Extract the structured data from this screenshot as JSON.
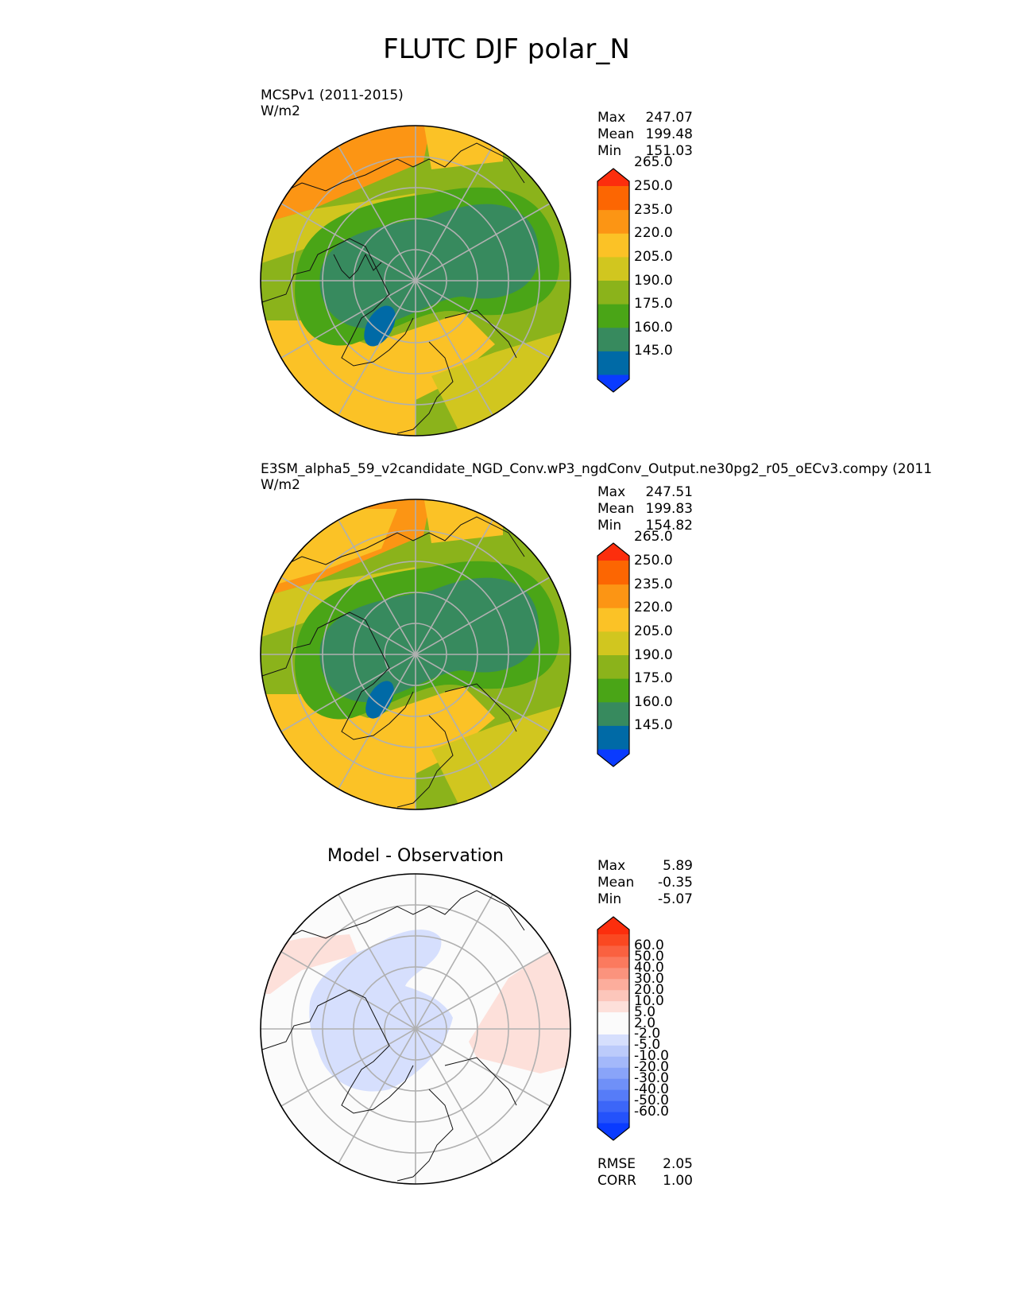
{
  "title": "FLUTC DJF polar_N",
  "panels": [
    {
      "id": "test",
      "subtitle": "MCSPv1 (2011-2015)",
      "units": "W/m2",
      "stats": [
        {
          "label": "Max",
          "value": "247.07"
        },
        {
          "label": "Mean",
          "value": "199.48"
        },
        {
          "label": "Min",
          "value": "151.03"
        }
      ],
      "colorbar": {
        "colors": [
          "#0a3bff",
          "#006aa6",
          "#378a5e",
          "#4aa517",
          "#8bb31b",
          "#d1c61f",
          "#fbc226",
          "#fc9514",
          "#fc6602",
          "#fc2e0d"
        ],
        "labels": [
          "145.0",
          "160.0",
          "175.0",
          "190.0",
          "205.0",
          "220.0",
          "235.0",
          "250.0",
          "265.0"
        ]
      }
    },
    {
      "id": "reference",
      "subtitle": "E3SM_alpha5_59_v2candidate_NGD_Conv.wP3_ngdConv_Output.ne30pg2_r05_oECv3.compy (2011",
      "units": "W/m2",
      "stats": [
        {
          "label": "Max",
          "value": "247.51"
        },
        {
          "label": "Mean",
          "value": "199.83"
        },
        {
          "label": "Min",
          "value": "154.82"
        }
      ],
      "colorbar": {
        "colors": [
          "#0a3bff",
          "#006aa6",
          "#378a5e",
          "#4aa517",
          "#8bb31b",
          "#d1c61f",
          "#fbc226",
          "#fc9514",
          "#fc6602",
          "#fc2e0d"
        ],
        "labels": [
          "145.0",
          "160.0",
          "175.0",
          "190.0",
          "205.0",
          "220.0",
          "235.0",
          "250.0",
          "265.0"
        ]
      }
    },
    {
      "id": "difference",
      "plot_title": "Model - Observation",
      "stats": [
        {
          "label": "Max",
          "value": "5.89"
        },
        {
          "label": "Mean",
          "value": "-0.35"
        },
        {
          "label": "Min",
          "value": "-5.07"
        }
      ],
      "metrics": [
        {
          "label": "RMSE",
          "value": "2.05"
        },
        {
          "label": "CORR",
          "value": "1.00"
        }
      ],
      "colorbar": {
        "colors": [
          "#0a3bff",
          "#2452fb",
          "#3c66f8",
          "#567cf8",
          "#6f90f8",
          "#89a4f9",
          "#a3b8fa",
          "#bccbfb",
          "#d6dffd",
          "#fbfbfb",
          "#fbfbfb",
          "#fde0da",
          "#fcc6bb",
          "#fcad9c",
          "#fb937d",
          "#fb7a5e",
          "#fa6140",
          "#fa4821",
          "#fc2e0d"
        ],
        "labels": [
          "-60.0",
          "-50.0",
          "-40.0",
          "-30.0",
          "-20.0",
          "-10.0",
          "-5.0",
          "-2.0",
          "2.0",
          "5.0",
          "10.0",
          "20.0",
          "30.0",
          "40.0",
          "50.0",
          "60.0"
        ]
      }
    }
  ]
}
